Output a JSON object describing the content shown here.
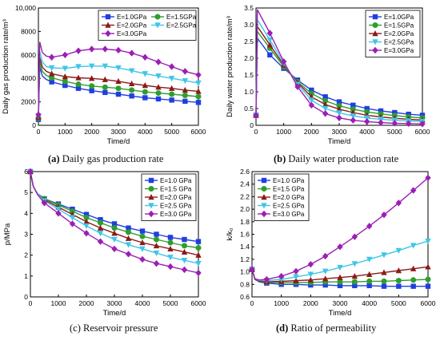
{
  "colors": {
    "E10": "#1f3fe0",
    "E15": "#2e9e2e",
    "E20": "#8b1a1a",
    "E25": "#3fc6e6",
    "E30": "#9b1fb5"
  },
  "chart_data": [
    {
      "type": "line",
      "panel": "a",
      "caption_tag": "(a)",
      "caption_text": " Daily gas production rate",
      "xlabel": "Time/d",
      "ylabel": "Daily gas production rate/m³",
      "xlim": [
        0,
        6000
      ],
      "ylim": [
        0,
        10000
      ],
      "xticks": [
        "0",
        "1000",
        "2000",
        "3000",
        "4000",
        "5000",
        "6000"
      ],
      "yticks": [
        "0",
        "2000",
        "4000",
        "6000",
        "8000",
        "10,000"
      ],
      "legend": {
        "columns": 2,
        "placement": "top-right"
      },
      "marker_step": 500,
      "series": [
        {
          "name": "E=1.0GPa",
          "marker": "square",
          "x": [
            0,
            50,
            150,
            300,
            500,
            1000,
            1500,
            2000,
            2500,
            3000,
            3500,
            4000,
            4500,
            5000,
            5500,
            6000
          ],
          "y": [
            500,
            5000,
            4200,
            3900,
            3700,
            3400,
            3150,
            2950,
            2800,
            2650,
            2500,
            2350,
            2250,
            2150,
            2050,
            1950
          ]
        },
        {
          "name": "E=1.5GPa",
          "marker": "circle",
          "x": [
            0,
            50,
            150,
            300,
            500,
            1000,
            1500,
            2000,
            2500,
            3000,
            3500,
            4000,
            4500,
            5000,
            5500,
            6000
          ],
          "y": [
            600,
            5400,
            4600,
            4250,
            4050,
            3750,
            3500,
            3350,
            3250,
            3150,
            3000,
            2850,
            2750,
            2650,
            2550,
            2450
          ]
        },
        {
          "name": "E=2.0GPa",
          "marker": "triangle",
          "x": [
            0,
            50,
            150,
            300,
            500,
            1000,
            1500,
            2000,
            2500,
            3000,
            3500,
            4000,
            4500,
            5000,
            5500,
            6000
          ],
          "y": [
            700,
            5800,
            4950,
            4600,
            4400,
            4150,
            4050,
            4000,
            3900,
            3750,
            3550,
            3400,
            3250,
            3150,
            3000,
            2900
          ]
        },
        {
          "name": "E=2.5GPa",
          "marker": "down-triangle",
          "x": [
            0,
            50,
            150,
            300,
            500,
            1000,
            1500,
            2000,
            2500,
            3000,
            3500,
            4000,
            4500,
            5000,
            5500,
            6000
          ],
          "y": [
            800,
            6300,
            5400,
            5000,
            4900,
            4850,
            5000,
            5050,
            5050,
            4900,
            4650,
            4400,
            4200,
            4000,
            3800,
            3600
          ]
        },
        {
          "name": "E=3.0GPa",
          "marker": "diamond",
          "x": [
            0,
            50,
            150,
            300,
            500,
            1000,
            1500,
            2000,
            2500,
            3000,
            3500,
            4000,
            4500,
            5000,
            5500,
            6000
          ],
          "y": [
            900,
            7100,
            6200,
            5900,
            5800,
            6000,
            6350,
            6500,
            6500,
            6400,
            6150,
            5800,
            5400,
            5000,
            4600,
            4300
          ]
        }
      ]
    },
    {
      "type": "line",
      "panel": "b",
      "caption_tag": "(b)",
      "caption_text": " Daily water production rate",
      "xlabel": "Time/d",
      "ylabel": "Daily water production rate/m³",
      "xlim": [
        0,
        6000
      ],
      "ylim": [
        0,
        3.5
      ],
      "xticks": [
        "0",
        "1000",
        "2000",
        "3000",
        "4000",
        "5000",
        "6000"
      ],
      "yticks": [
        "0",
        "0.5",
        "1.0",
        "1.5",
        "2.0",
        "2.5",
        "3.0",
        "3.5"
      ],
      "legend": {
        "columns": 1,
        "placement": "top-right"
      },
      "marker_step": 500,
      "series": [
        {
          "name": "E=1.0GPa",
          "marker": "square",
          "x": [
            0,
            50,
            500,
            1000,
            1500,
            2000,
            2500,
            3000,
            3500,
            4000,
            4500,
            5000,
            5500,
            6000
          ],
          "y": [
            0.3,
            2.6,
            2.1,
            1.7,
            1.35,
            1.05,
            0.85,
            0.7,
            0.6,
            0.5,
            0.43,
            0.38,
            0.33,
            0.3
          ]
        },
        {
          "name": "E=1.5GPa",
          "marker": "circle",
          "x": [
            0,
            50,
            500,
            1000,
            1500,
            2000,
            2500,
            3000,
            3500,
            4000,
            4500,
            5000,
            5500,
            6000
          ],
          "y": [
            0.3,
            2.8,
            2.3,
            1.75,
            1.3,
            0.95,
            0.73,
            0.58,
            0.48,
            0.4,
            0.34,
            0.29,
            0.25,
            0.22
          ]
        },
        {
          "name": "E=2.0GPa",
          "marker": "triangle",
          "x": [
            0,
            50,
            500,
            1000,
            1500,
            2000,
            2500,
            3000,
            3500,
            4000,
            4500,
            5000,
            5500,
            6000
          ],
          "y": [
            0.3,
            2.95,
            2.4,
            1.8,
            1.27,
            0.85,
            0.62,
            0.48,
            0.38,
            0.3,
            0.25,
            0.21,
            0.18,
            0.16
          ]
        },
        {
          "name": "E=2.5GPa",
          "marker": "down-triangle",
          "x": [
            0,
            50,
            500,
            1000,
            1500,
            2000,
            2500,
            3000,
            3500,
            4000,
            4500,
            5000,
            5500,
            6000
          ],
          "y": [
            0.3,
            3.15,
            2.55,
            1.85,
            1.22,
            0.75,
            0.5,
            0.37,
            0.28,
            0.22,
            0.18,
            0.15,
            0.13,
            0.12
          ]
        },
        {
          "name": "E=3.0GPa",
          "marker": "diamond",
          "x": [
            0,
            50,
            500,
            1000,
            1500,
            2000,
            2500,
            3000,
            3500,
            4000,
            4500,
            5000,
            5500,
            6000
          ],
          "y": [
            0.3,
            3.45,
            2.75,
            1.9,
            1.15,
            0.6,
            0.35,
            0.22,
            0.15,
            0.11,
            0.08,
            0.06,
            0.05,
            0.04
          ]
        }
      ]
    },
    {
      "type": "line",
      "panel": "c",
      "caption_tag": "(c)",
      "caption_text": " Reservoir pressure",
      "xlabel": "Time/d",
      "ylabel": "p/MPa",
      "xlim": [
        0,
        6000
      ],
      "ylim": [
        0,
        6
      ],
      "xticks": [
        "0",
        "1000",
        "2000",
        "3000",
        "4000",
        "5000",
        "6000"
      ],
      "yticks": [
        "0",
        "1",
        "2",
        "3",
        "4",
        "5",
        "6"
      ],
      "legend": {
        "columns": 1,
        "placement": "top-right"
      },
      "marker_step": 500,
      "series": [
        {
          "name": "E=1.0 GPa",
          "marker": "square",
          "x": [
            0,
            100,
            250,
            500,
            1000,
            1500,
            2000,
            2500,
            3000,
            3500,
            4000,
            4500,
            5000,
            5500,
            6000
          ],
          "y": [
            6.0,
            5.3,
            4.95,
            4.7,
            4.45,
            4.2,
            3.95,
            3.7,
            3.5,
            3.3,
            3.15,
            3.0,
            2.85,
            2.75,
            2.65
          ]
        },
        {
          "name": "E=1.5 GPa",
          "marker": "circle",
          "x": [
            0,
            100,
            250,
            500,
            1000,
            1500,
            2000,
            2500,
            3000,
            3500,
            4000,
            4500,
            5000,
            5500,
            6000
          ],
          "y": [
            6.0,
            5.3,
            4.95,
            4.7,
            4.4,
            4.1,
            3.8,
            3.55,
            3.3,
            3.1,
            2.9,
            2.75,
            2.6,
            2.45,
            2.35
          ]
        },
        {
          "name": "E=2.0 GPa",
          "marker": "triangle",
          "x": [
            0,
            100,
            250,
            500,
            1000,
            1500,
            2000,
            2500,
            3000,
            3500,
            4000,
            4500,
            5000,
            5500,
            6000
          ],
          "y": [
            6.0,
            5.3,
            4.95,
            4.65,
            4.3,
            3.95,
            3.6,
            3.3,
            3.05,
            2.8,
            2.6,
            2.45,
            2.3,
            2.15,
            2.0
          ]
        },
        {
          "name": "E=2.5 GPa",
          "marker": "down-triangle",
          "x": [
            0,
            100,
            250,
            500,
            1000,
            1500,
            2000,
            2500,
            3000,
            3500,
            4000,
            4500,
            5000,
            5500,
            6000
          ],
          "y": [
            6.0,
            5.3,
            4.95,
            4.6,
            4.2,
            3.8,
            3.4,
            3.05,
            2.75,
            2.5,
            2.3,
            2.1,
            1.9,
            1.75,
            1.6
          ]
        },
        {
          "name": "E=3.0 GPa",
          "marker": "diamond",
          "x": [
            0,
            100,
            250,
            500,
            1000,
            1500,
            2000,
            2500,
            3000,
            3500,
            4000,
            4500,
            5000,
            5500,
            6000
          ],
          "y": [
            6.0,
            5.3,
            4.9,
            4.5,
            4.0,
            3.5,
            3.05,
            2.65,
            2.3,
            2.05,
            1.8,
            1.6,
            1.45,
            1.3,
            1.15
          ]
        }
      ]
    },
    {
      "type": "line",
      "panel": "d",
      "caption_tag": "(d)",
      "caption_text": " Ratio of permeability",
      "xlabel": "Time/d",
      "ylabel": "k/k₀",
      "xlim": [
        0,
        6000
      ],
      "ylim": [
        0.6,
        2.6
      ],
      "xticks": [
        "0",
        "1000",
        "2000",
        "3000",
        "4000",
        "5000",
        "6000"
      ],
      "yticks": [
        "0.6",
        "0.8",
        "1.0",
        "1.2",
        "1.4",
        "1.6",
        "1.8",
        "2.0",
        "2.2",
        "2.4",
        "2.6"
      ],
      "legend": {
        "columns": 1,
        "placement": "top-left"
      },
      "marker_step": 500,
      "series": [
        {
          "name": "E=1.0 GPa",
          "marker": "square",
          "x": [
            0,
            100,
            250,
            500,
            1000,
            1500,
            2000,
            2500,
            3000,
            3500,
            4000,
            4500,
            5000,
            5500,
            6000
          ],
          "y": [
            1.04,
            0.88,
            0.84,
            0.82,
            0.8,
            0.8,
            0.79,
            0.79,
            0.78,
            0.78,
            0.78,
            0.77,
            0.77,
            0.77,
            0.77
          ]
        },
        {
          "name": "E=1.5 GPa",
          "marker": "circle",
          "x": [
            0,
            100,
            250,
            500,
            1000,
            1500,
            2000,
            2500,
            3000,
            3500,
            4000,
            4500,
            5000,
            5500,
            6000
          ],
          "y": [
            1.04,
            0.88,
            0.85,
            0.83,
            0.83,
            0.83,
            0.83,
            0.84,
            0.84,
            0.84,
            0.85,
            0.85,
            0.86,
            0.87,
            0.88
          ]
        },
        {
          "name": "E=2.0 GPa",
          "marker": "triangle",
          "x": [
            0,
            100,
            250,
            500,
            1000,
            1500,
            2000,
            2500,
            3000,
            3500,
            4000,
            4500,
            5000,
            5500,
            6000
          ],
          "y": [
            1.04,
            0.88,
            0.85,
            0.84,
            0.85,
            0.86,
            0.87,
            0.89,
            0.91,
            0.93,
            0.96,
            0.99,
            1.02,
            1.05,
            1.08
          ]
        },
        {
          "name": "E=2.5 GPa",
          "marker": "down-triangle",
          "x": [
            0,
            100,
            250,
            500,
            1000,
            1500,
            2000,
            2500,
            3000,
            3500,
            4000,
            4500,
            5000,
            5500,
            6000
          ],
          "y": [
            1.04,
            0.89,
            0.86,
            0.86,
            0.88,
            0.92,
            0.96,
            1.01,
            1.07,
            1.13,
            1.2,
            1.27,
            1.34,
            1.42,
            1.49
          ]
        },
        {
          "name": "E=3.0 GPa",
          "marker": "diamond",
          "x": [
            0,
            100,
            250,
            500,
            1000,
            1500,
            2000,
            2500,
            3000,
            3500,
            4000,
            4500,
            5000,
            5500,
            6000
          ],
          "y": [
            1.04,
            0.89,
            0.87,
            0.88,
            0.93,
            1.01,
            1.12,
            1.25,
            1.4,
            1.56,
            1.73,
            1.91,
            2.1,
            2.3,
            2.5
          ]
        }
      ]
    }
  ]
}
